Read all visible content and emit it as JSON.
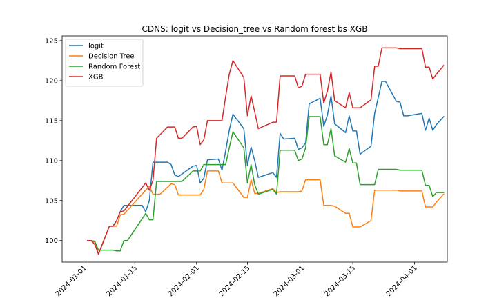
{
  "chart_data": {
    "type": "line",
    "title": "CDNS: logit vs Decision_tree vs Random forest bs XGB",
    "xlabel": "",
    "ylabel": "",
    "x_axis_type": "date",
    "xlim": [
      "2023-12-26",
      "2024-04-10"
    ],
    "ylim": [
      97.3,
      125.6
    ],
    "x_ticks": [
      "2024-01-01",
      "2024-01-15",
      "2024-02-01",
      "2024-02-15",
      "2024-03-01",
      "2024-03-15",
      "2024-04-01"
    ],
    "y_ticks": [
      100,
      105,
      110,
      115,
      120,
      125
    ],
    "grid": false,
    "legend_position": "top-left",
    "series": [
      {
        "name": "logit",
        "color": "#1f77b4",
        "points": [
          [
            "2024-01-02",
            100.0
          ],
          [
            "2024-01-03",
            100.0
          ],
          [
            "2024-01-04",
            99.8
          ],
          [
            "2024-01-05",
            98.3
          ],
          [
            "2024-01-08",
            101.8
          ],
          [
            "2024-01-09",
            101.8
          ],
          [
            "2024-01-10",
            102.5
          ],
          [
            "2024-01-11",
            103.6
          ],
          [
            "2024-01-12",
            104.4
          ],
          [
            "2024-01-16",
            104.4
          ],
          [
            "2024-01-17",
            104.4
          ],
          [
            "2024-01-18",
            103.6
          ],
          [
            "2024-01-19",
            105.0
          ],
          [
            "2024-01-20",
            109.8
          ],
          [
            "2024-01-24",
            109.8
          ],
          [
            "2024-01-25",
            109.5
          ],
          [
            "2024-01-26",
            108.2
          ],
          [
            "2024-01-27",
            108.0
          ],
          [
            "2024-01-31",
            109.3
          ],
          [
            "2024-02-01",
            109.4
          ],
          [
            "2024-02-02",
            107.2
          ],
          [
            "2024-02-03",
            107.8
          ],
          [
            "2024-02-04",
            110.1
          ],
          [
            "2024-02-07",
            110.2
          ],
          [
            "2024-02-08",
            108.8
          ],
          [
            "2024-02-09",
            111.2
          ],
          [
            "2024-02-10",
            113.8
          ],
          [
            "2024-02-11",
            115.8
          ],
          [
            "2024-02-14",
            114.0
          ],
          [
            "2024-02-15",
            109.4
          ],
          [
            "2024-02-16",
            111.7
          ],
          [
            "2024-02-17",
            110.0
          ],
          [
            "2024-02-18",
            107.9
          ],
          [
            "2024-02-22",
            108.5
          ],
          [
            "2024-02-23",
            107.9
          ],
          [
            "2024-02-24",
            113.4
          ],
          [
            "2024-02-25",
            112.7
          ],
          [
            "2024-02-28",
            112.8
          ],
          [
            "2024-02-29",
            111.4
          ],
          [
            "2024-03-01",
            111.6
          ],
          [
            "2024-03-02",
            112.2
          ],
          [
            "2024-03-03",
            117.1
          ],
          [
            "2024-03-06",
            117.8
          ],
          [
            "2024-03-07",
            114.3
          ],
          [
            "2024-03-08",
            115.7
          ],
          [
            "2024-03-09",
            118.1
          ],
          [
            "2024-03-10",
            114.6
          ],
          [
            "2024-03-13",
            113.5
          ],
          [
            "2024-03-14",
            115.6
          ],
          [
            "2024-03-15",
            113.7
          ],
          [
            "2024-03-16",
            113.7
          ],
          [
            "2024-03-17",
            110.8
          ],
          [
            "2024-03-20",
            111.8
          ],
          [
            "2024-03-21",
            115.9
          ],
          [
            "2024-03-23",
            119.9
          ],
          [
            "2024-03-24",
            119.9
          ],
          [
            "2024-03-27",
            117.4
          ],
          [
            "2024-03-28",
            117.3
          ],
          [
            "2024-03-29",
            115.6
          ],
          [
            "2024-03-30",
            115.6
          ],
          [
            "2024-04-03",
            115.9
          ],
          [
            "2024-04-04",
            113.8
          ],
          [
            "2024-04-05",
            115.3
          ],
          [
            "2024-04-06",
            113.8
          ],
          [
            "2024-04-07",
            114.5
          ],
          [
            "2024-04-09",
            115.5
          ]
        ]
      },
      {
        "name": "Decision Tree",
        "color": "#ff7f0e",
        "points": [
          [
            "2024-01-02",
            100.0
          ],
          [
            "2024-01-03",
            100.0
          ],
          [
            "2024-01-04",
            99.8
          ],
          [
            "2024-01-05",
            98.3
          ],
          [
            "2024-01-08",
            101.8
          ],
          [
            "2024-01-09",
            101.8
          ],
          [
            "2024-01-10",
            101.8
          ],
          [
            "2024-01-11",
            103.2
          ],
          [
            "2024-01-12",
            103.3
          ],
          [
            "2024-01-19",
            106.8
          ],
          [
            "2024-01-20",
            105.8
          ],
          [
            "2024-01-21",
            105.8
          ],
          [
            "2024-01-22",
            105.8
          ],
          [
            "2024-01-25",
            107.1
          ],
          [
            "2024-01-26",
            107.0
          ],
          [
            "2024-01-27",
            105.7
          ],
          [
            "2024-02-02",
            105.7
          ],
          [
            "2024-02-03",
            106.4
          ],
          [
            "2024-02-04",
            108.7
          ],
          [
            "2024-02-07",
            108.7
          ],
          [
            "2024-02-08",
            107.2
          ],
          [
            "2024-02-11",
            107.2
          ],
          [
            "2024-02-14",
            105.4
          ],
          [
            "2024-02-15",
            105.4
          ],
          [
            "2024-02-16",
            107.6
          ],
          [
            "2024-02-17",
            105.9
          ],
          [
            "2024-02-18",
            105.9
          ],
          [
            "2024-02-22",
            106.5
          ],
          [
            "2024-02-23",
            106.0
          ],
          [
            "2024-02-24",
            106.1
          ],
          [
            "2024-02-28",
            106.1
          ],
          [
            "2024-02-29",
            106.1
          ],
          [
            "2024-03-01",
            106.2
          ],
          [
            "2024-03-02",
            107.6
          ],
          [
            "2024-03-06",
            107.6
          ],
          [
            "2024-03-07",
            104.4
          ],
          [
            "2024-03-09",
            104.4
          ],
          [
            "2024-03-10",
            104.3
          ],
          [
            "2024-03-13",
            103.4
          ],
          [
            "2024-03-14",
            103.4
          ],
          [
            "2024-03-15",
            101.7
          ],
          [
            "2024-03-17",
            101.7
          ],
          [
            "2024-03-20",
            102.5
          ],
          [
            "2024-03-21",
            106.3
          ],
          [
            "2024-03-23",
            106.3
          ],
          [
            "2024-03-27",
            106.3
          ],
          [
            "2024-03-28",
            106.2
          ],
          [
            "2024-04-03",
            106.2
          ],
          [
            "2024-04-04",
            104.2
          ],
          [
            "2024-04-06",
            104.2
          ],
          [
            "2024-04-07",
            104.8
          ],
          [
            "2024-04-09",
            105.8
          ]
        ]
      },
      {
        "name": "Random Forest",
        "color": "#2ca02c",
        "points": [
          [
            "2024-01-02",
            100.0
          ],
          [
            "2024-01-03",
            100.0
          ],
          [
            "2024-01-04",
            99.9
          ],
          [
            "2024-01-05",
            98.8
          ],
          [
            "2024-01-08",
            98.8
          ],
          [
            "2024-01-09",
            98.8
          ],
          [
            "2024-01-10",
            98.7
          ],
          [
            "2024-01-11",
            98.7
          ],
          [
            "2024-01-12",
            100.0
          ],
          [
            "2024-01-13",
            100.0
          ],
          [
            "2024-01-18",
            103.4
          ],
          [
            "2024-01-19",
            102.6
          ],
          [
            "2024-01-20",
            102.6
          ],
          [
            "2024-01-21",
            107.4
          ],
          [
            "2024-01-25",
            107.4
          ],
          [
            "2024-01-28",
            107.4
          ],
          [
            "2024-01-31",
            108.7
          ],
          [
            "2024-02-01",
            108.7
          ],
          [
            "2024-02-02",
            108.7
          ],
          [
            "2024-02-03",
            109.5
          ],
          [
            "2024-02-07",
            109.5
          ],
          [
            "2024-02-08",
            109.5
          ],
          [
            "2024-02-09",
            109.5
          ],
          [
            "2024-02-10",
            111.6
          ],
          [
            "2024-02-11",
            113.6
          ],
          [
            "2024-02-14",
            111.6
          ],
          [
            "2024-02-15",
            107.2
          ],
          [
            "2024-02-16",
            109.5
          ],
          [
            "2024-02-17",
            107.0
          ],
          [
            "2024-02-18",
            105.8
          ],
          [
            "2024-02-22",
            106.4
          ],
          [
            "2024-02-23",
            105.8
          ],
          [
            "2024-02-24",
            111.3
          ],
          [
            "2024-02-28",
            111.3
          ],
          [
            "2024-02-29",
            110.0
          ],
          [
            "2024-03-01",
            110.2
          ],
          [
            "2024-03-02",
            111.6
          ],
          [
            "2024-03-03",
            115.5
          ],
          [
            "2024-03-06",
            115.5
          ],
          [
            "2024-03-07",
            112.0
          ],
          [
            "2024-03-08",
            112.0
          ],
          [
            "2024-03-09",
            114.0
          ],
          [
            "2024-03-10",
            110.6
          ],
          [
            "2024-03-13",
            109.8
          ],
          [
            "2024-03-14",
            111.5
          ],
          [
            "2024-03-15",
            109.7
          ],
          [
            "2024-03-16",
            109.7
          ],
          [
            "2024-03-17",
            107.0
          ],
          [
            "2024-03-20",
            107.0
          ],
          [
            "2024-03-21",
            107.0
          ],
          [
            "2024-03-22",
            108.9
          ],
          [
            "2024-03-27",
            108.9
          ],
          [
            "2024-03-28",
            108.8
          ],
          [
            "2024-04-03",
            108.8
          ],
          [
            "2024-04-04",
            106.9
          ],
          [
            "2024-04-05",
            106.9
          ],
          [
            "2024-04-06",
            105.5
          ],
          [
            "2024-04-07",
            106.0
          ],
          [
            "2024-04-09",
            106.0
          ]
        ]
      },
      {
        "name": "XGB",
        "color": "#d62728",
        "points": [
          [
            "2024-01-02",
            100.0
          ],
          [
            "2024-01-03",
            100.0
          ],
          [
            "2024-01-04",
            99.5
          ],
          [
            "2024-01-05",
            98.3
          ],
          [
            "2024-01-08",
            101.8
          ],
          [
            "2024-01-09",
            101.8
          ],
          [
            "2024-01-10",
            102.5
          ],
          [
            "2024-01-11",
            103.6
          ],
          [
            "2024-01-12",
            103.7
          ],
          [
            "2024-01-18",
            107.2
          ],
          [
            "2024-01-19",
            106.3
          ],
          [
            "2024-01-20",
            107.5
          ],
          [
            "2024-01-21",
            112.8
          ],
          [
            "2024-01-24",
            114.2
          ],
          [
            "2024-01-26",
            114.2
          ],
          [
            "2024-01-27",
            112.8
          ],
          [
            "2024-01-28",
            112.8
          ],
          [
            "2024-01-31",
            114.2
          ],
          [
            "2024-02-01",
            114.3
          ],
          [
            "2024-02-02",
            112.0
          ],
          [
            "2024-02-03",
            112.6
          ],
          [
            "2024-02-04",
            115.0
          ],
          [
            "2024-02-07",
            115.0
          ],
          [
            "2024-02-08",
            115.0
          ],
          [
            "2024-02-09",
            118.0
          ],
          [
            "2024-02-10",
            120.8
          ],
          [
            "2024-02-11",
            122.5
          ],
          [
            "2024-02-14",
            120.4
          ],
          [
            "2024-02-15",
            115.6
          ],
          [
            "2024-02-16",
            118.1
          ],
          [
            "2024-02-17",
            116.1
          ],
          [
            "2024-02-18",
            114.0
          ],
          [
            "2024-02-22",
            114.8
          ],
          [
            "2024-02-23",
            114.8
          ],
          [
            "2024-02-24",
            120.6
          ],
          [
            "2024-02-28",
            120.6
          ],
          [
            "2024-02-29",
            119.1
          ],
          [
            "2024-03-01",
            119.3
          ],
          [
            "2024-03-02",
            120.8
          ],
          [
            "2024-03-06",
            120.8
          ],
          [
            "2024-03-07",
            117.2
          ],
          [
            "2024-03-08",
            118.7
          ],
          [
            "2024-03-09",
            121.1
          ],
          [
            "2024-03-10",
            117.5
          ],
          [
            "2024-03-13",
            116.6
          ],
          [
            "2024-03-14",
            118.5
          ],
          [
            "2024-03-15",
            116.6
          ],
          [
            "2024-03-17",
            116.6
          ],
          [
            "2024-03-20",
            117.6
          ],
          [
            "2024-03-21",
            121.8
          ],
          [
            "2024-03-22",
            121.8
          ],
          [
            "2024-03-23",
            124.1
          ],
          [
            "2024-03-27",
            124.1
          ],
          [
            "2024-03-28",
            124.0
          ],
          [
            "2024-04-03",
            124.0
          ],
          [
            "2024-04-04",
            121.7
          ],
          [
            "2024-04-05",
            121.7
          ],
          [
            "2024-04-06",
            120.2
          ],
          [
            "2024-04-07",
            120.8
          ],
          [
            "2024-04-09",
            121.9
          ]
        ]
      }
    ]
  }
}
